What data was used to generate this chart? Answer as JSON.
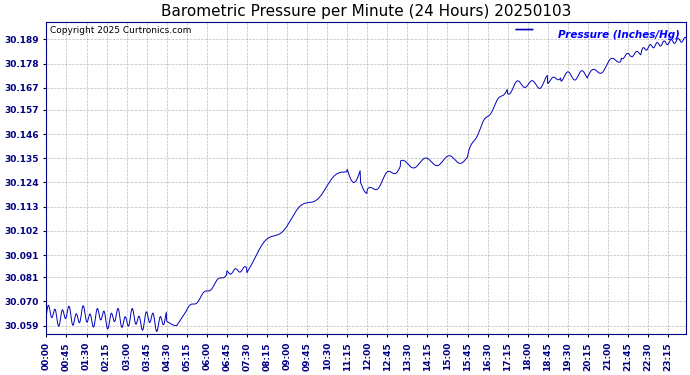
{
  "title": "Barometric Pressure per Minute (24 Hours) 20250103",
  "copyright_text": "Copyright 2025 Curtronics.com",
  "legend_label": "Pressure (Inches/Hg)",
  "line_color": "#0000bb",
  "legend_color": "#0000ff",
  "background_color": "#ffffff",
  "grid_color": "#aaaaaa",
  "title_color": "#000000",
  "copyright_color": "#000000",
  "tick_color": "#000080",
  "ylim": [
    30.055,
    30.197
  ],
  "yticks": [
    30.059,
    30.07,
    30.081,
    30.091,
    30.102,
    30.113,
    30.124,
    30.135,
    30.146,
    30.157,
    30.167,
    30.178,
    30.189
  ],
  "xtick_interval_minutes": 45,
  "total_minutes": 1436,
  "title_fontsize": 11,
  "tick_fontsize": 6.5
}
